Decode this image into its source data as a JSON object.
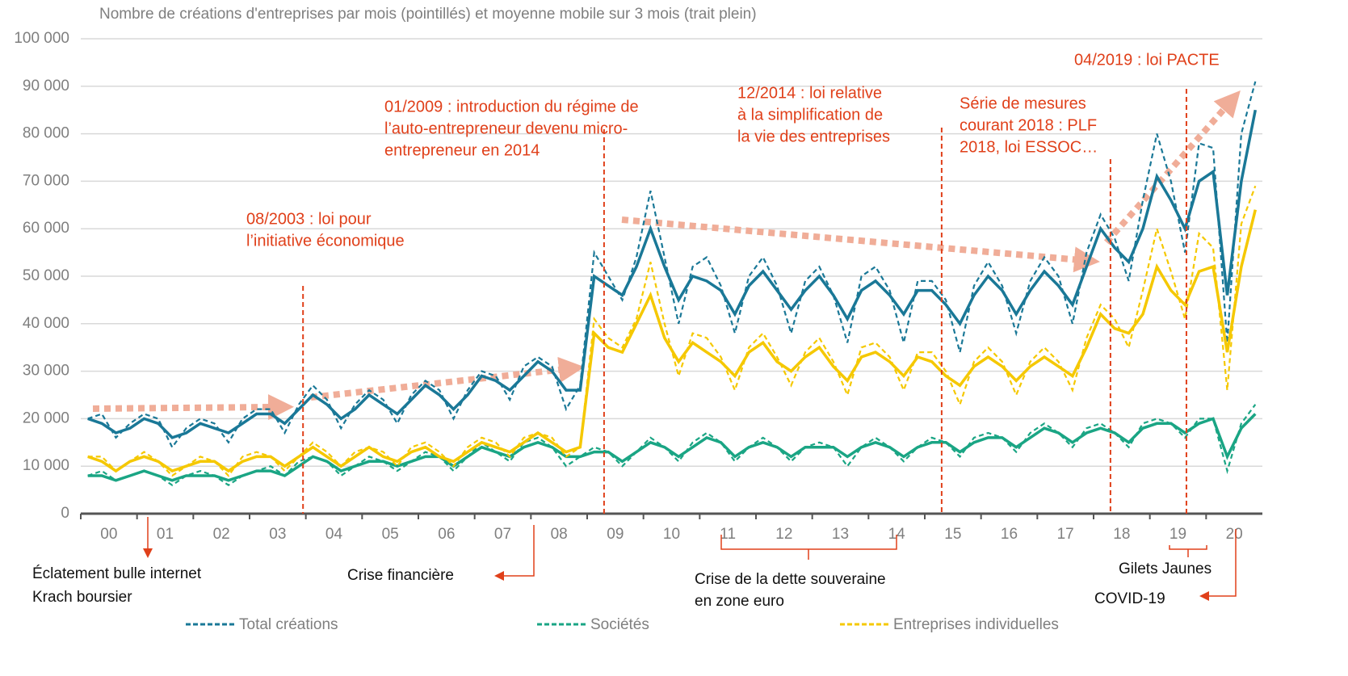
{
  "chart_data": {
    "type": "line",
    "title": "Nombre de créations d'entreprises par mois (pointillés) et moyenne mobile sur 3 mois (trait plein)",
    "x": [
      2000.125,
      2000.375,
      2000.625,
      2000.875,
      2001.125,
      2001.375,
      2001.625,
      2001.875,
      2002.125,
      2002.375,
      2002.625,
      2002.875,
      2003.125,
      2003.375,
      2003.625,
      2003.875,
      2004.125,
      2004.375,
      2004.625,
      2004.875,
      2005.125,
      2005.375,
      2005.625,
      2005.875,
      2006.125,
      2006.375,
      2006.625,
      2006.875,
      2007.125,
      2007.375,
      2007.625,
      2007.875,
      2008.125,
      2008.375,
      2008.625,
      2008.875,
      2009.125,
      2009.375,
      2009.625,
      2009.875,
      2010.125,
      2010.375,
      2010.625,
      2010.875,
      2011.125,
      2011.375,
      2011.625,
      2011.875,
      2012.125,
      2012.375,
      2012.625,
      2012.875,
      2013.125,
      2013.375,
      2013.625,
      2013.875,
      2014.125,
      2014.375,
      2014.625,
      2014.875,
      2015.125,
      2015.375,
      2015.625,
      2015.875,
      2016.125,
      2016.375,
      2016.625,
      2016.875,
      2017.125,
      2017.375,
      2017.625,
      2017.875,
      2018.125,
      2018.375,
      2018.625,
      2018.875,
      2019.125,
      2019.375,
      2019.625,
      2019.875,
      2020.125,
      2020.375,
      2020.625,
      2020.875
    ],
    "xlim": [
      2000,
      2021
    ],
    "xticks": [
      {
        "value": 2000.5,
        "label": "00"
      },
      {
        "value": 2001.5,
        "label": "01"
      },
      {
        "value": 2002.5,
        "label": "02"
      },
      {
        "value": 2003.5,
        "label": "03"
      },
      {
        "value": 2004.5,
        "label": "04"
      },
      {
        "value": 2005.5,
        "label": "05"
      },
      {
        "value": 2006.5,
        "label": "06"
      },
      {
        "value": 2007.5,
        "label": "07"
      },
      {
        "value": 2008.5,
        "label": "08"
      },
      {
        "value": 2009.5,
        "label": "09"
      },
      {
        "value": 2010.5,
        "label": "10"
      },
      {
        "value": 2011.5,
        "label": "11"
      },
      {
        "value": 2012.5,
        "label": "12"
      },
      {
        "value": 2013.5,
        "label": "13"
      },
      {
        "value": 2014.5,
        "label": "14"
      },
      {
        "value": 2015.5,
        "label": "15"
      },
      {
        "value": 2016.5,
        "label": "16"
      },
      {
        "value": 2017.5,
        "label": "17"
      },
      {
        "value": 2018.5,
        "label": "18"
      },
      {
        "value": 2019.5,
        "label": "19"
      },
      {
        "value": 2020.5,
        "label": "20"
      }
    ],
    "ylim": [
      0,
      100000
    ],
    "yticks": [
      0,
      {
        "value": 10000,
        "label": "10 000"
      },
      {
        "value": 20000,
        "label": "20 000"
      },
      {
        "value": 30000,
        "label": "30 000"
      },
      {
        "value": 40000,
        "label": "40 000"
      },
      {
        "value": 50000,
        "label": "50 000"
      },
      {
        "value": 60000,
        "label": "60 000"
      },
      {
        "value": 70000,
        "label": "70 000"
      },
      {
        "value": 80000,
        "label": "80 000"
      },
      {
        "value": 90000,
        "label": "90 000"
      },
      {
        "value": 100000,
        "label": "100 000"
      }
    ],
    "grid": true,
    "series": [
      {
        "name": "Total créations",
        "color": "#1a7897",
        "values": [
          20000,
          21000,
          16000,
          19000,
          21000,
          20000,
          14000,
          18000,
          20000,
          19000,
          15000,
          20000,
          22000,
          22000,
          17000,
          23000,
          27000,
          24000,
          18000,
          23000,
          26000,
          24000,
          19000,
          25000,
          28000,
          26000,
          20000,
          26000,
          30000,
          29000,
          24000,
          31000,
          33000,
          31000,
          22000,
          27000,
          55000,
          50000,
          45000,
          54000,
          68000,
          54000,
          40000,
          52000,
          54000,
          48000,
          38000,
          50000,
          54000,
          48000,
          38000,
          49000,
          52000,
          46000,
          36000,
          50000,
          52000,
          47000,
          36000,
          49000,
          49000,
          45000,
          34000,
          48000,
          53000,
          48000,
          38000,
          49000,
          54000,
          50000,
          40000,
          55000,
          63000,
          58000,
          49000,
          66000,
          80000,
          70000,
          55000,
          78000,
          77000,
          36000,
          80000,
          91000
        ],
        "moving_average": [
          20000,
          19000,
          17000,
          18000,
          20000,
          19000,
          16000,
          17000,
          19000,
          18000,
          17000,
          19000,
          21000,
          21000,
          19000,
          22000,
          25000,
          23000,
          20000,
          22000,
          25000,
          23000,
          21000,
          24000,
          27000,
          25000,
          22000,
          25000,
          29000,
          28000,
          26000,
          29000,
          32000,
          30000,
          26000,
          26000,
          50000,
          48000,
          46000,
          52000,
          60000,
          52000,
          45000,
          50000,
          49000,
          47000,
          42000,
          48000,
          51000,
          47000,
          43000,
          47000,
          50000,
          46000,
          41000,
          47000,
          49000,
          46000,
          42000,
          47000,
          47000,
          44000,
          40000,
          46000,
          50000,
          47000,
          42000,
          47000,
          51000,
          48000,
          44000,
          52000,
          60000,
          56000,
          53000,
          60000,
          71000,
          66000,
          60000,
          70000,
          72000,
          46000,
          70000,
          85000
        ]
      },
      {
        "name": "Sociétés",
        "color": "#1aa584",
        "values": [
          8000,
          9000,
          7000,
          8000,
          9000,
          8000,
          6000,
          8000,
          9000,
          8000,
          6000,
          8000,
          9000,
          10000,
          8000,
          11000,
          12000,
          11000,
          8000,
          10000,
          12000,
          11000,
          9000,
          11000,
          13000,
          12000,
          9000,
          12000,
          15000,
          13000,
          11000,
          15000,
          16000,
          14000,
          10000,
          12000,
          14000,
          13000,
          10000,
          13000,
          16000,
          14000,
          11000,
          15000,
          17000,
          15000,
          11000,
          14000,
          16000,
          14000,
          11000,
          14000,
          15000,
          14000,
          10000,
          14000,
          16000,
          14000,
          11000,
          14000,
          16000,
          15000,
          12000,
          16000,
          17000,
          16000,
          13000,
          17000,
          19000,
          17000,
          14000,
          18000,
          19000,
          17000,
          14000,
          19000,
          20000,
          19000,
          16000,
          20000,
          20000,
          9000,
          19000,
          23000
        ],
        "moving_average": [
          8000,
          8000,
          7000,
          8000,
          9000,
          8000,
          7000,
          8000,
          8000,
          8000,
          7000,
          8000,
          9000,
          9000,
          8000,
          10000,
          12000,
          11000,
          9000,
          10000,
          11000,
          11000,
          10000,
          11000,
          12000,
          12000,
          10000,
          12000,
          14000,
          13000,
          12000,
          14000,
          15000,
          14000,
          12000,
          12000,
          13000,
          13000,
          11000,
          13000,
          15000,
          14000,
          12000,
          14000,
          16000,
          15000,
          12000,
          14000,
          15000,
          14000,
          12000,
          14000,
          14000,
          14000,
          12000,
          14000,
          15000,
          14000,
          12000,
          14000,
          15000,
          15000,
          13000,
          15000,
          16000,
          16000,
          14000,
          16000,
          18000,
          17000,
          15000,
          17000,
          18000,
          17000,
          15000,
          18000,
          19000,
          19000,
          17000,
          19000,
          20000,
          12000,
          18000,
          21000
        ]
      },
      {
        "name": "Entreprises individuelles",
        "color": "#f5c800",
        "values": [
          12000,
          12000,
          9000,
          11000,
          13000,
          11000,
          8000,
          10000,
          12000,
          11000,
          8000,
          12000,
          13000,
          12000,
          9000,
          12000,
          15000,
          13000,
          10000,
          13000,
          14000,
          13000,
          10000,
          14000,
          15000,
          13000,
          10000,
          14000,
          16000,
          15000,
          12000,
          16000,
          17000,
          16000,
          12000,
          14000,
          41000,
          37000,
          35000,
          41000,
          53000,
          40000,
          29000,
          38000,
          37000,
          33000,
          26000,
          35000,
          38000,
          33000,
          27000,
          34000,
          37000,
          32000,
          25000,
          35000,
          36000,
          33000,
          26000,
          34000,
          34000,
          30000,
          23000,
          32000,
          35000,
          32000,
          25000,
          32000,
          35000,
          32000,
          26000,
          37000,
          44000,
          41000,
          35000,
          47000,
          60000,
          51000,
          41000,
          59000,
          56000,
          26000,
          61000,
          69000
        ],
        "moving_average": [
          12000,
          11000,
          9000,
          11000,
          12000,
          11000,
          9000,
          10000,
          11000,
          11000,
          9000,
          11000,
          12000,
          12000,
          10000,
          12000,
          14000,
          12000,
          10000,
          12000,
          14000,
          12000,
          11000,
          13000,
          14000,
          12000,
          11000,
          13000,
          15000,
          14000,
          13000,
          15000,
          17000,
          15000,
          13000,
          14000,
          38000,
          35000,
          34000,
          40000,
          46000,
          37000,
          32000,
          36000,
          34000,
          32000,
          29000,
          34000,
          36000,
          32000,
          30000,
          33000,
          35000,
          31000,
          28000,
          33000,
          34000,
          32000,
          29000,
          33000,
          32000,
          29000,
          27000,
          31000,
          33000,
          31000,
          28000,
          31000,
          33000,
          31000,
          29000,
          35000,
          42000,
          39000,
          38000,
          42000,
          52000,
          47000,
          44000,
          51000,
          52000,
          34000,
          52000,
          64000
        ]
      }
    ],
    "events": [
      {
        "x": 2003.95,
        "lines": [
          "08/2003 : loi pour",
          "l’initiative économique"
        ]
      },
      {
        "x": 2009.3,
        "lines": [
          "01/2009 : introduction du régime de",
          "l’auto-entrepreneur devenu micro-",
          "entrepreneur en 2014"
        ]
      },
      {
        "x": 2015.3,
        "lines": [
          "12/2014 : loi relative",
          "à la simplification de",
          "la vie des entreprises"
        ]
      },
      {
        "x": 2018.3,
        "lines": [
          "Série de mesures",
          "courant 2018 : PLF",
          "2018, loi ESSOC…"
        ]
      },
      {
        "x": 2019.65,
        "lines": [
          "04/2019 : loi PACTE"
        ]
      }
    ],
    "notes": [
      [
        "Éclatement bulle internet",
        "Krach boursier"
      ],
      [
        "Crise financière"
      ],
      [
        "Crise de la dette souveraine",
        "en zone euro"
      ],
      [
        "Gilets Jaunes"
      ],
      [
        "COVID-19"
      ]
    ]
  }
}
